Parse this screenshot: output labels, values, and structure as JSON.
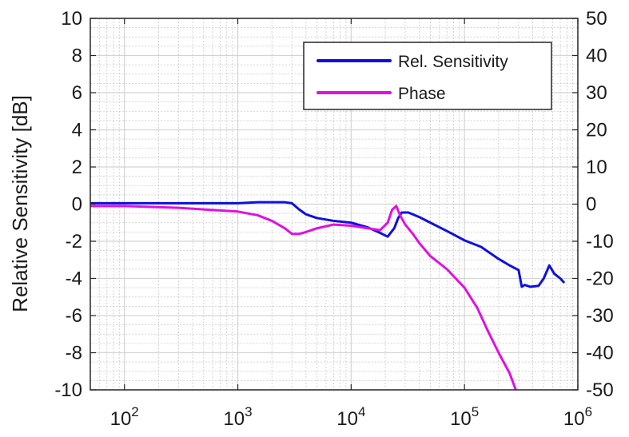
{
  "chart_data": {
    "type": "line",
    "title": "",
    "xlabel": "",
    "ylabel": "Relative Sensitivity [dB]",
    "y2label": "",
    "xscale": "log",
    "xlim": [
      50,
      1000000
    ],
    "ylim": [
      -10,
      10
    ],
    "y2lim": [
      -50,
      50
    ],
    "grid": true,
    "minor_grid": true,
    "legend_position": "top-right",
    "x_ticks": [
      {
        "value": 100,
        "base": "10",
        "exp": "2"
      },
      {
        "value": 1000,
        "base": "10",
        "exp": "3"
      },
      {
        "value": 10000,
        "base": "10",
        "exp": "4"
      },
      {
        "value": 100000,
        "base": "10",
        "exp": "5"
      },
      {
        "value": 1000000,
        "base": "10",
        "exp": "6"
      }
    ],
    "y_ticks": [
      "10",
      "8",
      "6",
      "4",
      "2",
      "0",
      "-2",
      "-4",
      "-6",
      "-8",
      "-10"
    ],
    "y2_ticks": [
      "50",
      "40",
      "30",
      "20",
      "10",
      "0",
      "-10",
      "-20",
      "-30",
      "-40",
      "-50"
    ],
    "series": [
      {
        "name": "Rel. Sensitivity",
        "axis": "left",
        "color": "#1010e0",
        "x": [
          50,
          100,
          300,
          1000,
          1500,
          2000,
          2600,
          3000,
          3500,
          4000,
          5000,
          7000,
          10000,
          14000,
          18000,
          21000,
          24000,
          26000,
          28000,
          32000,
          40000,
          50000,
          70000,
          100000,
          140000,
          200000,
          250000,
          300000,
          320000,
          340000,
          380000,
          450000,
          500000,
          560000,
          620000,
          700000,
          750000
        ],
        "y": [
          0.05,
          0.05,
          0.05,
          0.05,
          0.1,
          0.1,
          0.1,
          0.05,
          -0.3,
          -0.55,
          -0.75,
          -0.9,
          -1.0,
          -1.25,
          -1.55,
          -1.75,
          -1.3,
          -0.75,
          -0.45,
          -0.45,
          -0.7,
          -1.0,
          -1.45,
          -1.95,
          -2.3,
          -2.95,
          -3.3,
          -3.55,
          -4.45,
          -4.35,
          -4.45,
          -4.4,
          -4.0,
          -3.3,
          -3.75,
          -4.0,
          -4.2
        ]
      },
      {
        "name": "Phase",
        "axis": "right",
        "color": "#e010e0",
        "x": [
          50,
          100,
          300,
          1000,
          1500,
          2000,
          2600,
          3000,
          3500,
          4000,
          5000,
          7000,
          10000,
          14000,
          18000,
          21000,
          23000,
          25000,
          27000,
          30000,
          35000,
          40000,
          50000,
          70000,
          100000,
          130000,
          160000,
          200000,
          250000,
          300000,
          320000
        ],
        "y": [
          -0.5,
          -0.5,
          -1.0,
          -2.0,
          -3.0,
          -4.5,
          -6.5,
          -8.0,
          -8.0,
          -7.5,
          -6.5,
          -5.5,
          -5.8,
          -6.5,
          -7.0,
          -5.0,
          -1.5,
          -0.5,
          -3.0,
          -5.5,
          -8.0,
          -10.5,
          -14.0,
          -17.5,
          -22.5,
          -28.0,
          -34.0,
          -40.0,
          -45.5,
          -52.0,
          -55.0
        ]
      }
    ]
  }
}
